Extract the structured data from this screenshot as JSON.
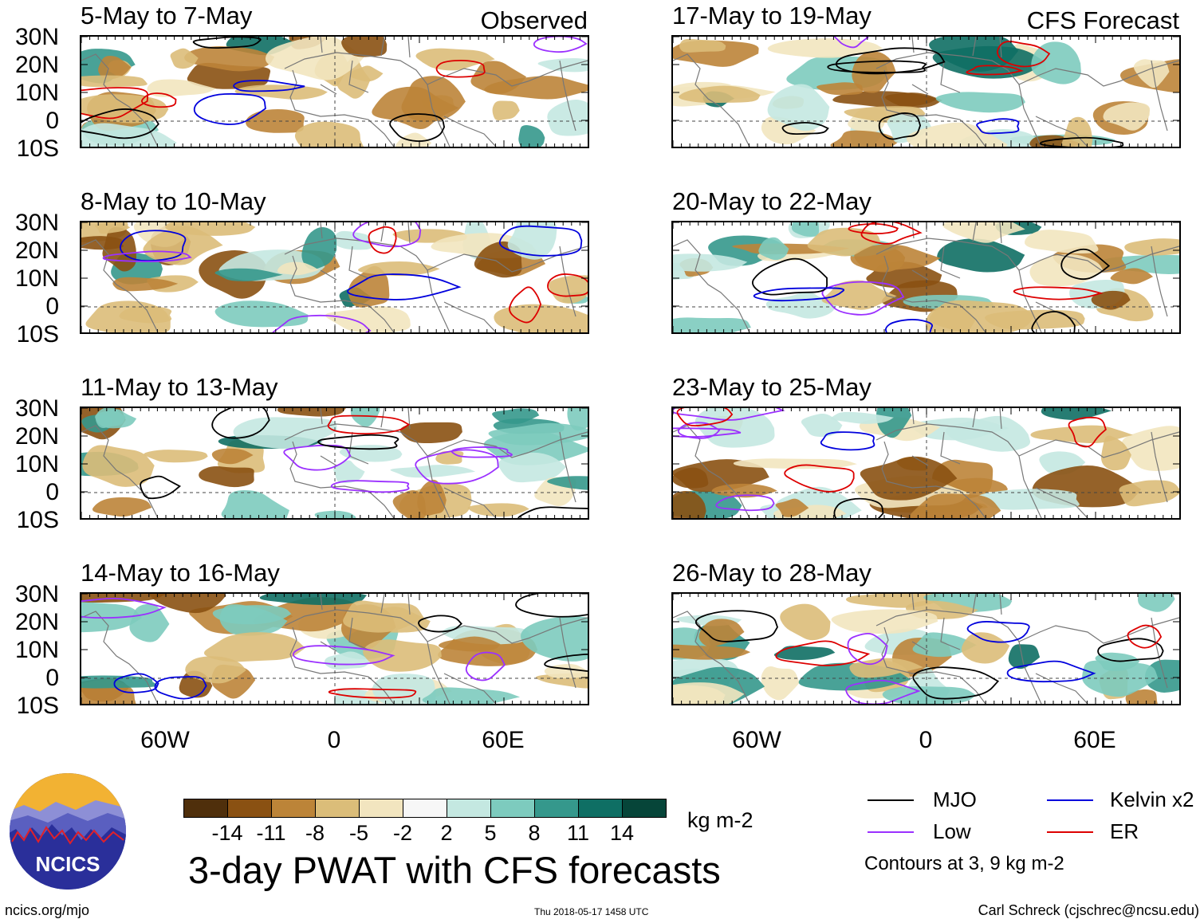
{
  "panels": {
    "left": [
      {
        "title": "5-May to 7-May",
        "tag": "Observed"
      },
      {
        "title": "8-May to 10-May",
        "tag": ""
      },
      {
        "title": "11-May to 13-May",
        "tag": ""
      },
      {
        "title": "14-May to 16-May",
        "tag": ""
      }
    ],
    "right": [
      {
        "title": "17-May to 19-May",
        "tag": "CFS Forecast"
      },
      {
        "title": "20-May to 22-May",
        "tag": ""
      },
      {
        "title": "23-May to 25-May",
        "tag": ""
      },
      {
        "title": "26-May to 28-May",
        "tag": ""
      }
    ]
  },
  "axes": {
    "lat_labels": [
      "30N",
      "20N",
      "10N",
      "0",
      "10S"
    ],
    "lon_labels": [
      "60W",
      "0",
      "60E"
    ]
  },
  "colorbar": {
    "colors": [
      "#4f2f0b",
      "#8a5112",
      "#bc8438",
      "#dbbd79",
      "#f2e5bf",
      "#f7f7f7",
      "#c4e8e1",
      "#7dcbbe",
      "#35988c",
      "#0f6f64",
      "#064539"
    ],
    "ticks": [
      "-14",
      "-11",
      "-8",
      "-5",
      "-2",
      "2",
      "5",
      "8",
      "11",
      "14"
    ],
    "units": "kg m-2"
  },
  "title": "3-day PWAT with CFS forecasts",
  "legend": {
    "items": [
      {
        "label": "MJO",
        "color": "#000000"
      },
      {
        "label": "Kelvin x2",
        "color": "#0000dd"
      },
      {
        "label": "Low",
        "color": "#9b30ff"
      },
      {
        "label": "ER",
        "color": "#dd0000"
      }
    ],
    "note": "Contours at 3, 9 kg m-2"
  },
  "logo": {
    "text": "NCICS"
  },
  "footer": {
    "left": "ncics.org/mjo",
    "center": "Thu 2018-05-17 1458 UTC",
    "right": "Carl Schreck (cjschrec@ncsu.edu)"
  }
}
